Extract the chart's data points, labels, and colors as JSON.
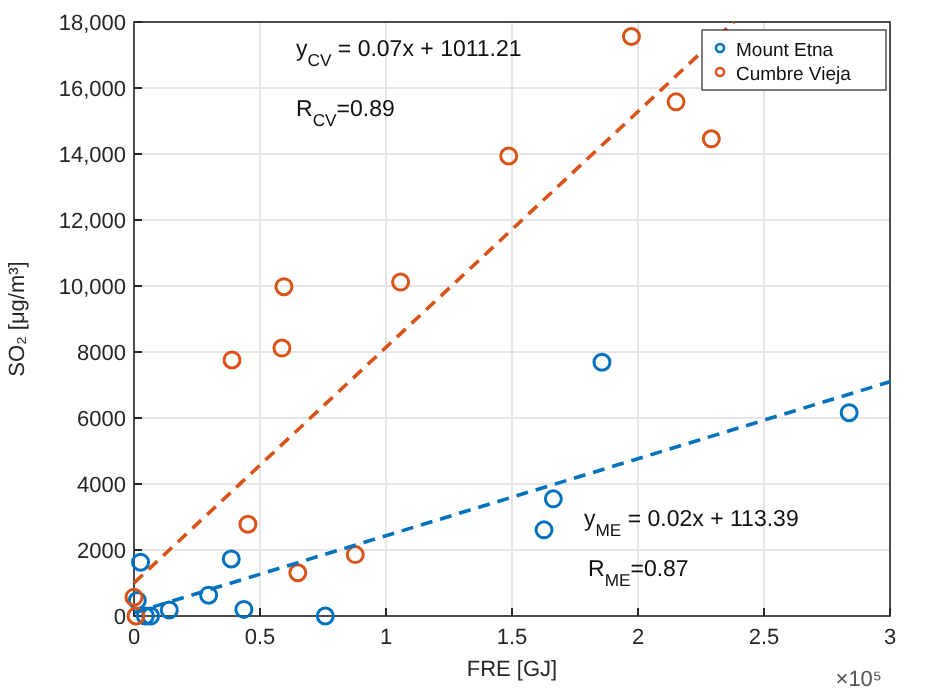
{
  "chart_data": {
    "type": "scatter",
    "xlabel": "FRE [GJ]",
    "ylabel": "SO₂ [μg/m³]",
    "xlim": [
      0,
      3
    ],
    "ylim": [
      0,
      18000
    ],
    "xticks": [
      0,
      0.5,
      1,
      1.5,
      2,
      2.5,
      3
    ],
    "yticks": [
      0,
      2000,
      4000,
      6000,
      8000,
      {
        "value": 10000,
        "label": "10,000"
      },
      {
        "value": 12000,
        "label": "12,000"
      },
      {
        "value": 14000,
        "label": "14,000"
      },
      {
        "value": 16000,
        "label": "16,000"
      },
      {
        "value": 18000,
        "label": "18,000"
      }
    ],
    "grid": true,
    "legend": "top right",
    "series": [
      {
        "name": "Mount Etna",
        "color": "#0072bd",
        "marker": "circle",
        "x": [
          0.026,
          0.013,
          0.066,
          0.045,
          0.14,
          0.296,
          0.386,
          0.436,
          0.759,
          1.627,
          1.664,
          1.857,
          2.838
        ],
        "values": [
          1630,
          470,
          0,
          0,
          180,
          630,
          1730,
          200,
          0,
          2610,
          3550,
          7690,
          6160
        ]
      },
      {
        "name": "Cumbre Vieja",
        "color": "#d95319",
        "marker": "circle",
        "x": [
          0,
          0.008,
          0.452,
          0.65,
          0.878,
          0.389,
          0.587,
          0.595,
          1.058,
          1.487,
          1.974,
          2.151,
          2.291
        ],
        "values": [
          570,
          0,
          2780,
          1310,
          1860,
          7760,
          8120,
          9980,
          10120,
          13940,
          17560,
          15580,
          14460
        ]
      },
      {
        "type": "line",
        "color": "#0072bd",
        "line_style": "dashed",
        "marker": "none",
        "x": [
          0,
          3
        ],
        "values": [
          100,
          7100
        ]
      },
      {
        "type": "line",
        "color": "#d95319",
        "line_style": "dashed",
        "marker": "none",
        "x": [
          0,
          2.38
        ],
        "values": [
          1000,
          18000
        ]
      }
    ],
    "annotations": [
      "y$_{CV}$ = 0.07x + 1011.21",
      "R$_{CV}$=0.89",
      "y$_{ME}$ = 0.02x + 113.39",
      "R$_{ME}$=0.87",
      "×10⁵"
    ]
  }
}
